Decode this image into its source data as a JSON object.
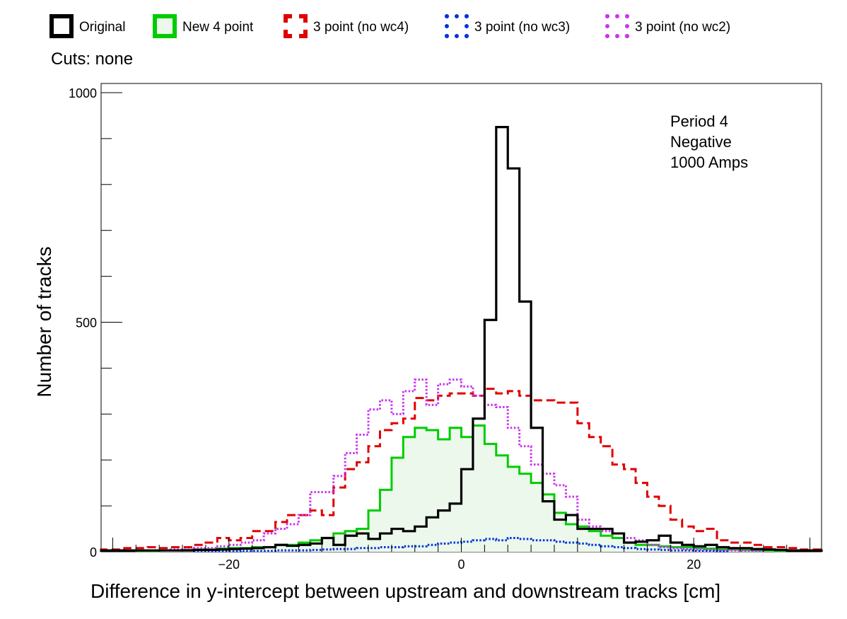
{
  "chart_data": {
    "type": "histogram",
    "xlabel": "Difference in y-intercept between upstream and downstream tracks [cm]",
    "ylabel": "Number of tracks",
    "xlim": [
      -31,
      31
    ],
    "ylim": [
      0,
      1020
    ],
    "x_ticks": [
      {
        "value": -20,
        "label": "−20"
      },
      {
        "value": 0,
        "label": "0"
      },
      {
        "value": 20,
        "label": "20"
      }
    ],
    "y_ticks": [
      {
        "value": 0,
        "label": "0"
      },
      {
        "value": 500,
        "label": "500"
      },
      {
        "value": 1000,
        "label": "1000"
      }
    ],
    "grid": false,
    "legend": {
      "position": "top-left",
      "entries": [
        "Original",
        "New 4 point",
        "3 point (no wc4)",
        "3 point (no wc3)",
        "3 point (no wc2)"
      ]
    },
    "cuts_text": "Cuts: none",
    "annotation": [
      "Period 4",
      "Negative",
      "1000 Amps"
    ],
    "bin_start": -31,
    "bin_width": 1,
    "series": [
      {
        "name": "Original",
        "color": "#000000",
        "line_style": "solid",
        "fill": "none",
        "values": [
          3,
          3,
          3,
          3,
          3,
          3,
          3,
          3,
          4,
          4,
          5,
          6,
          7,
          8,
          10,
          15,
          13,
          15,
          18,
          30,
          15,
          35,
          40,
          28,
          40,
          50,
          45,
          55,
          75,
          90,
          105,
          180,
          290,
          505,
          925,
          835,
          545,
          270,
          110,
          70,
          80,
          50,
          50,
          50,
          40,
          20,
          22,
          25,
          35,
          20,
          15,
          12,
          15,
          10,
          8,
          8,
          6,
          5,
          4,
          3,
          3,
          3
        ]
      },
      {
        "name": "New 4 point",
        "color": "#00cc00",
        "line_style": "solid",
        "fill": "#ecf8ec",
        "values": [
          2,
          2,
          3,
          3,
          4,
          5,
          5,
          7,
          8,
          8,
          10,
          10,
          15,
          15,
          20,
          25,
          30,
          40,
          45,
          50,
          90,
          135,
          205,
          250,
          270,
          265,
          245,
          270,
          250,
          275,
          235,
          210,
          185,
          170,
          150,
          125,
          85,
          60,
          55,
          45,
          35,
          30,
          20,
          15,
          15,
          12,
          10,
          10,
          8,
          7,
          5,
          5,
          4,
          3,
          3,
          2
        ]
      },
      {
        "name": "3 point (no wc4)",
        "color": "#e00000",
        "line_style": "dashed",
        "fill": "none",
        "values": [
          5,
          5,
          8,
          8,
          10,
          8,
          10,
          10,
          15,
          20,
          30,
          25,
          30,
          45,
          45,
          65,
          80,
          80,
          90,
          80,
          140,
          180,
          195,
          230,
          265,
          280,
          290,
          335,
          330,
          340,
          345,
          345,
          340,
          355,
          345,
          350,
          340,
          330,
          330,
          325,
          325,
          280,
          250,
          230,
          190,
          180,
          150,
          120,
          100,
          70,
          55,
          45,
          50,
          25,
          20,
          20,
          15,
          10,
          10,
          8,
          5,
          5
        ]
      },
      {
        "name": "3 point (no wc3)",
        "color": "#0033dd",
        "line_style": "dotted",
        "fill": "none",
        "values": [
          1,
          1,
          1,
          1,
          2,
          2,
          2,
          3,
          3,
          3,
          4,
          5,
          6,
          6,
          8,
          8,
          10,
          10,
          12,
          12,
          15,
          18,
          20,
          22,
          25,
          28,
          25,
          30,
          28,
          25,
          25,
          22,
          20,
          18,
          15,
          12,
          10,
          8,
          6,
          5,
          4,
          3,
          3,
          2,
          2,
          1
        ]
      },
      {
        "name": "3 point (no wc2)",
        "color": "#cc33ee",
        "line_style": "dotted",
        "fill": "none",
        "values": [
          3,
          3,
          5,
          5,
          8,
          8,
          12,
          15,
          20,
          25,
          40,
          50,
          60,
          80,
          130,
          130,
          165,
          215,
          255,
          310,
          330,
          300,
          350,
          375,
          320,
          365,
          375,
          360,
          340,
          320,
          315,
          270,
          230,
          190,
          170,
          145,
          120,
          70,
          55,
          45,
          40,
          30,
          25,
          15,
          10,
          8,
          6,
          5,
          4,
          3,
          3,
          2,
          2
        ]
      }
    ]
  }
}
